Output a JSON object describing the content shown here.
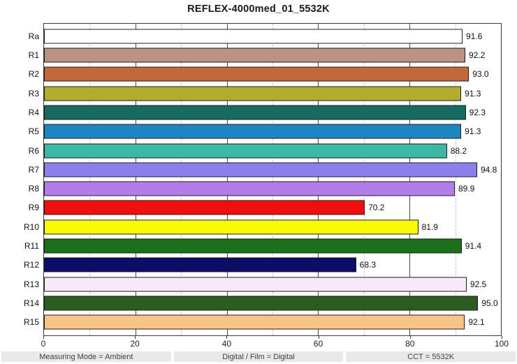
{
  "title": "REFLEX-4000med_01_5532K",
  "chart_data": {
    "type": "bar",
    "orientation": "horizontal",
    "title": "REFLEX-4000med_01_5532K",
    "categories": [
      "Ra",
      "R1",
      "R2",
      "R3",
      "R4",
      "R5",
      "R6",
      "R7",
      "R8",
      "R9",
      "R10",
      "R11",
      "R12",
      "R13",
      "R14",
      "R15"
    ],
    "values": [
      91.6,
      92.2,
      93.0,
      91.3,
      92.3,
      91.3,
      88.2,
      94.8,
      89.9,
      70.2,
      81.9,
      91.4,
      68.3,
      92.5,
      95.0,
      92.1
    ],
    "value_labels": [
      "91.6",
      "92.2",
      "93.0",
      "91.3",
      "92.3",
      "91.3",
      "88.2",
      "94.8",
      "89.9",
      "70.2",
      "81.9",
      "91.4",
      "68.3",
      "92.5",
      "95.0",
      "92.1"
    ],
    "bar_colors": [
      "#ffffff",
      "#bd9282",
      "#c2693a",
      "#b2ad2c",
      "#156b60",
      "#1e86c2",
      "#3bb9a4",
      "#8d7ef0",
      "#b37ceb",
      "#f40d0d",
      "#fafa05",
      "#1c701c",
      "#0d0d68",
      "#f8e8f8",
      "#2d5c20",
      "#f9c488"
    ],
    "xlim": [
      0,
      100
    ],
    "x_ticks": [
      0,
      20,
      40,
      60,
      80,
      100
    ],
    "x_minor_gridlines": [
      10,
      30,
      50,
      70,
      90
    ],
    "x_major_gridlines": [
      20,
      40,
      60,
      80
    ],
    "grid": "on",
    "legend": "none",
    "xlabel": "",
    "ylabel": ""
  },
  "status_bar": {
    "items": [
      "Measuring Mode = Ambient",
      "Digital / Film = Digital",
      "CCT = 5532K"
    ]
  },
  "colors": {
    "axis_border": "#3a3a3a",
    "major_grid": "#4a4a4a",
    "minor_grid": "#c6c6c6",
    "bar_outline": "#1c1c1c",
    "status_bg": "#e9e9e9",
    "status_text": "#3f3f3f",
    "background": "#ffffff"
  }
}
